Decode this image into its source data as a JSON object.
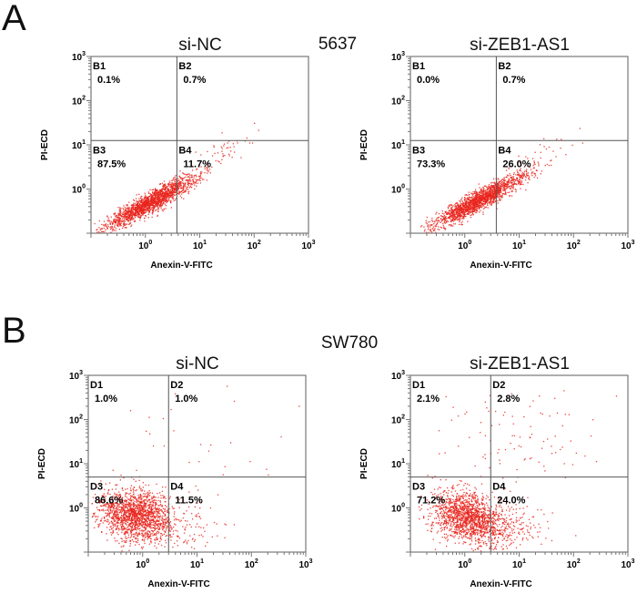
{
  "panels": [
    {
      "letter": "A",
      "cell_line": "5637"
    },
    {
      "letter": "B",
      "cell_line": "SW780"
    }
  ],
  "chart_data": [
    {
      "type": "scatter",
      "panel": "A",
      "title": "si-NC",
      "xlabel": "Anexin-V-FITC",
      "ylabel": "PI-ECD",
      "xscale": "log",
      "yscale": "log",
      "xlim": [
        0.1,
        1000
      ],
      "ylim": [
        0.1,
        1000
      ],
      "xticks": [
        "10^0",
        "10^1",
        "10^2",
        "10^3"
      ],
      "yticks": [
        "10^0",
        "10^1",
        "10^2",
        "10^3"
      ],
      "gate": {
        "x": 3.8,
        "y": 12.5
      },
      "quadrants": [
        {
          "label": "B1",
          "value": "0.1%"
        },
        {
          "label": "B2",
          "value": "0.7%"
        },
        {
          "label": "B3",
          "value": "87.5%"
        },
        {
          "label": "B4",
          "value": "11.7%"
        }
      ],
      "clusters": [
        {
          "mx": 0.1,
          "my": -0.28,
          "sx": 0.42,
          "sy": 0.3,
          "r": 0.92,
          "w": 0.97
        },
        {
          "mx": 1.3,
          "my": 0.75,
          "sx": 0.35,
          "sy": 0.3,
          "r": 0.8,
          "w": 0.03
        }
      ]
    },
    {
      "type": "scatter",
      "panel": "A",
      "title": "si-ZEB1-AS1",
      "xlabel": "Anexin-V-FITC",
      "ylabel": "PI-ECD",
      "xscale": "log",
      "yscale": "log",
      "xlim": [
        0.1,
        1000
      ],
      "ylim": [
        0.1,
        1000
      ],
      "xticks": [
        "10^0",
        "10^1",
        "10^2",
        "10^3"
      ],
      "yticks": [
        "10^0",
        "10^1",
        "10^2",
        "10^3"
      ],
      "gate": {
        "x": 3.8,
        "y": 12.5
      },
      "quadrants": [
        {
          "label": "B1",
          "value": "0.0%"
        },
        {
          "label": "B2",
          "value": "0.7%"
        },
        {
          "label": "B3",
          "value": "73.3%"
        },
        {
          "label": "B4",
          "value": "26.0%"
        }
      ],
      "clusters": [
        {
          "mx": 0.25,
          "my": -0.25,
          "sx": 0.42,
          "sy": 0.3,
          "r": 0.92,
          "w": 0.97
        },
        {
          "mx": 1.3,
          "my": 0.6,
          "sx": 0.35,
          "sy": 0.3,
          "r": 0.8,
          "w": 0.03
        }
      ]
    },
    {
      "type": "scatter",
      "panel": "B",
      "title": "si-NC",
      "xlabel": "Anexin-V-FITC",
      "ylabel": "PI-ECD",
      "xscale": "log",
      "yscale": "log",
      "xlim": [
        0.1,
        1000
      ],
      "ylim": [
        0.1,
        1000
      ],
      "xticks": [
        "10^0",
        "10^1",
        "10^2",
        "10^3"
      ],
      "yticks": [
        "10^0",
        "10^1",
        "10^2",
        "10^3"
      ],
      "gate": {
        "x": 3,
        "y": 5
      },
      "quadrants": [
        {
          "label": "D1",
          "value": "1.0%"
        },
        {
          "label": "D2",
          "value": "1.0%"
        },
        {
          "label": "D3",
          "value": "86.6%"
        },
        {
          "label": "D4",
          "value": "11.5%"
        }
      ],
      "clusters": [
        {
          "mx": -0.15,
          "my": -0.15,
          "sx": 0.35,
          "sy": 0.3,
          "r": -0.2,
          "w": 0.9
        },
        {
          "mx": 0.5,
          "my": -0.45,
          "sx": 0.4,
          "sy": 0.25,
          "r": 0,
          "w": 0.08
        },
        {
          "mx": 0.8,
          "my": 1.2,
          "sx": 0.8,
          "sy": 0.8,
          "r": 0,
          "w": 0.02
        }
      ]
    },
    {
      "type": "scatter",
      "panel": "B",
      "title": "si-ZEB1-AS1",
      "xlabel": "Anexin-V-FITC",
      "ylabel": "PI-ECD",
      "xscale": "log",
      "yscale": "log",
      "xlim": [
        0.1,
        1000
      ],
      "ylim": [
        0.1,
        1000
      ],
      "xticks": [
        "10^0",
        "10^1",
        "10^2",
        "10^3"
      ],
      "yticks": [
        "10^0",
        "10^1",
        "10^2",
        "10^3"
      ],
      "gate": {
        "x": 3,
        "y": 5
      },
      "quadrants": [
        {
          "label": "D1",
          "value": "2.1%"
        },
        {
          "label": "D2",
          "value": "2.8%"
        },
        {
          "label": "D3",
          "value": "71.2%"
        },
        {
          "label": "D4",
          "value": "24.0%"
        }
      ],
      "clusters": [
        {
          "mx": 0.05,
          "my": -0.2,
          "sx": 0.33,
          "sy": 0.3,
          "r": -0.3,
          "w": 0.8
        },
        {
          "mx": 0.6,
          "my": -0.45,
          "sx": 0.45,
          "sy": 0.25,
          "r": 0,
          "w": 0.14
        },
        {
          "mx": 0.9,
          "my": 1.4,
          "sx": 0.7,
          "sy": 0.8,
          "r": 0.2,
          "w": 0.06
        }
      ]
    }
  ],
  "colors": {
    "dots": "#e8241c",
    "axis": "#777777",
    "gate": "#555555"
  }
}
